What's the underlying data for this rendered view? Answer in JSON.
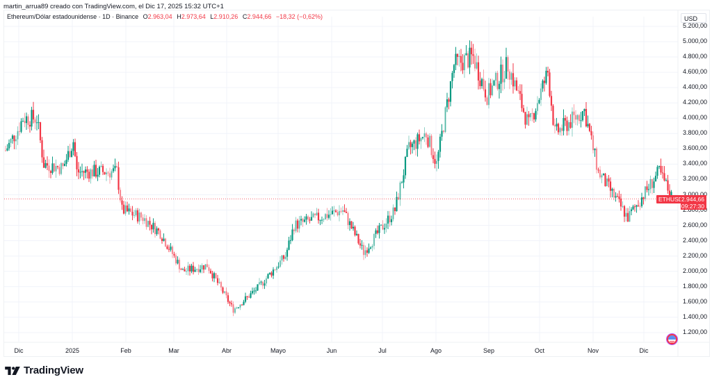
{
  "attribution": "martin_arrua89 creado con TradingView.com, el Dic 17, 2025 15:32 UTC+1",
  "legend": {
    "symbol": "Ethereum/Dólar estadounidense · 1D · Binance",
    "open_label": "O",
    "open": "2.963,04",
    "high_label": "H",
    "high": "2.973,64",
    "low_label": "L",
    "low": "2.910,26",
    "close_label": "C",
    "close": "2.944,66",
    "change": "−18,32 (−0,62%)"
  },
  "price_axis": {
    "currency": "USD",
    "labels": [
      "5.200,00",
      "5.000,00",
      "4.800,00",
      "4.600,00",
      "4.400,00",
      "4.200,00",
      "4.000,00",
      "3.800,00",
      "3.600,00",
      "3.400,00",
      "3.200,00",
      "3.000,00",
      "2.800,00",
      "2.600,00",
      "2.400,00",
      "2.200,00",
      "2.000,00",
      "1.800,00",
      "1.600,00",
      "1.400,00",
      "1.200,00"
    ]
  },
  "time_axis": {
    "labels": [
      "Dic",
      "2025",
      "Feb",
      "Mar",
      "Abr",
      "Mayo",
      "Jun",
      "Jul",
      "Ago",
      "Sep",
      "Oct",
      "Nov",
      "Dic"
    ]
  },
  "current_price": {
    "symbol_tag": "ETHUSD",
    "price": "2.944,66",
    "countdown": "09:27:30"
  },
  "branding": {
    "logo_text": "TradingView"
  },
  "colors": {
    "up": "#089981",
    "down": "#f23645",
    "grid": "#f0f3fa",
    "text": "#131722"
  },
  "chart_data": {
    "type": "candlestick",
    "title": "Ethereum/Dólar estadounidense · 1D · Binance",
    "xlabel": "",
    "ylabel": "USD",
    "ylim": [
      1100,
      5250
    ],
    "grid": true,
    "x_ticks": [
      "Dic",
      "2025",
      "Feb",
      "Mar",
      "Abr",
      "Mayo",
      "Jun",
      "Jul",
      "Ago",
      "Sep",
      "Oct",
      "Nov",
      "Dic"
    ],
    "y_ticks": [
      1200,
      1400,
      1600,
      1800,
      2000,
      2200,
      2400,
      2600,
      2800,
      3000,
      3200,
      3400,
      3600,
      3800,
      4000,
      4200,
      4400,
      4600,
      4800,
      5000,
      5200
    ],
    "last": {
      "open": 2963.04,
      "high": 2973.64,
      "low": 2910.26,
      "close": 2944.66,
      "change": -18.32,
      "change_pct": -0.62
    },
    "close_path": [
      {
        "date": "2024-11-28",
        "close": 3580
      },
      {
        "date": "2024-12-05",
        "close": 3850
      },
      {
        "date": "2024-12-08",
        "close": 4000
      },
      {
        "date": "2024-12-16",
        "close": 4000
      },
      {
        "date": "2024-12-20",
        "close": 3400
      },
      {
        "date": "2024-12-31",
        "close": 3350
      },
      {
        "date": "2025-01-06",
        "close": 3700
      },
      {
        "date": "2025-01-08",
        "close": 3300
      },
      {
        "date": "2025-01-20",
        "close": 3300
      },
      {
        "date": "2025-01-31",
        "close": 3300
      },
      {
        "date": "2025-02-03",
        "close": 2800
      },
      {
        "date": "2025-02-15",
        "close": 2700
      },
      {
        "date": "2025-02-25",
        "close": 2500
      },
      {
        "date": "2025-03-10",
        "close": 2000
      },
      {
        "date": "2025-03-24",
        "close": 2080
      },
      {
        "date": "2025-04-08",
        "close": 1500
      },
      {
        "date": "2025-04-22",
        "close": 1780
      },
      {
        "date": "2025-05-08",
        "close": 2200
      },
      {
        "date": "2025-05-13",
        "close": 2600
      },
      {
        "date": "2025-06-10",
        "close": 2800
      },
      {
        "date": "2025-06-22",
        "close": 2250
      },
      {
        "date": "2025-07-10",
        "close": 2800
      },
      {
        "date": "2025-07-18",
        "close": 3600
      },
      {
        "date": "2025-07-28",
        "close": 3800
      },
      {
        "date": "2025-08-03",
        "close": 3400
      },
      {
        "date": "2025-08-13",
        "close": 4700
      },
      {
        "date": "2025-08-24",
        "close": 4800
      },
      {
        "date": "2025-09-01",
        "close": 4300
      },
      {
        "date": "2025-09-13",
        "close": 4700
      },
      {
        "date": "2025-09-25",
        "close": 3900
      },
      {
        "date": "2025-10-06",
        "close": 4600
      },
      {
        "date": "2025-10-10",
        "close": 3800
      },
      {
        "date": "2025-10-27",
        "close": 4100
      },
      {
        "date": "2025-11-04",
        "close": 3300
      },
      {
        "date": "2025-11-21",
        "close": 2700
      },
      {
        "date": "2025-12-09",
        "close": 3300
      },
      {
        "date": "2025-12-17",
        "close": 2944.66
      }
    ]
  }
}
